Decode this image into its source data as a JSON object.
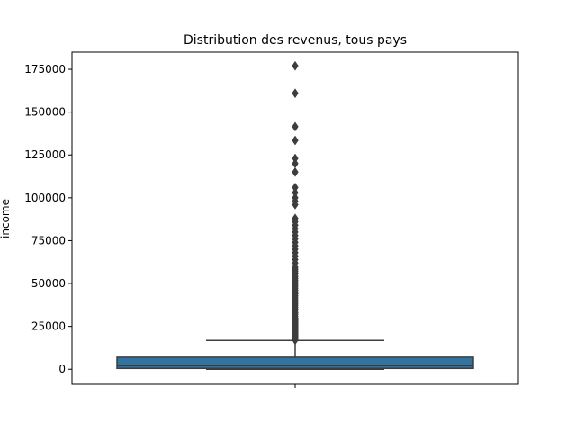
{
  "chart_data": {
    "type": "box",
    "title": "Distribution des revenus, tous pays",
    "xlabel": "",
    "ylabel": "income",
    "ylim": [
      -8800,
      185000
    ],
    "yticks": [
      0,
      25000,
      50000,
      75000,
      100000,
      125000,
      150000,
      175000
    ],
    "grid": false,
    "box": {
      "color": "#3274a1",
      "edge_color": "#3d3d3d",
      "whisker_low": 0,
      "q1": 500,
      "median": 2000,
      "q3": 7000,
      "whisker_high": 16800,
      "outliers": [
        17000,
        17500,
        18000,
        18500,
        19000,
        19500,
        20000,
        20500,
        21000,
        21500,
        22000,
        22500,
        23000,
        23500,
        24000,
        24500,
        25000,
        25500,
        26000,
        26500,
        27000,
        27500,
        28000,
        28500,
        29000,
        29500,
        30000,
        31000,
        32000,
        33000,
        34000,
        35000,
        36000,
        37000,
        38000,
        39000,
        40000,
        41000,
        42000,
        43000,
        44000,
        45000,
        46000,
        47000,
        48000,
        49000,
        50000,
        51000,
        52000,
        53000,
        54000,
        55000,
        56000,
        57000,
        58000,
        59000,
        60000,
        62000,
        64000,
        66000,
        68000,
        70000,
        72000,
        74000,
        76000,
        78000,
        80000,
        82000,
        84000,
        86000,
        88000,
        96000,
        98000,
        100000,
        103000,
        106000,
        115000,
        120000,
        123000,
        133500,
        141500,
        161000,
        177000
      ]
    }
  }
}
